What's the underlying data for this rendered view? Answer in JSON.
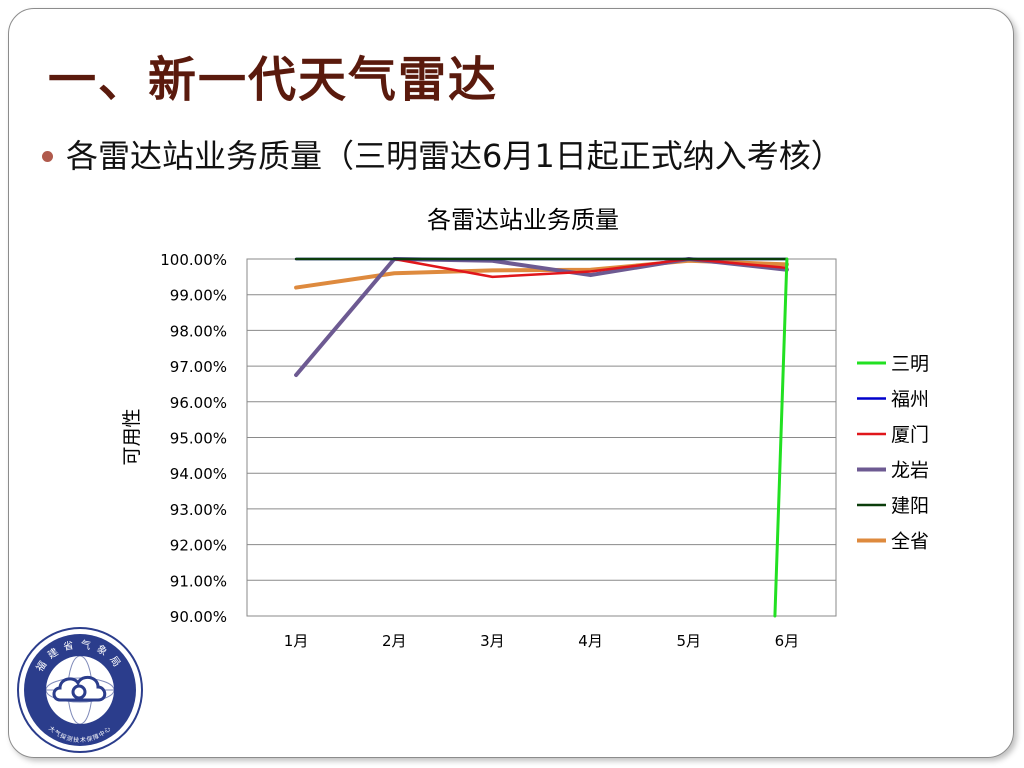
{
  "slide": {
    "title": "一、新一代天气雷达",
    "bullet": "各雷达站业务质量（三明雷达6月1日起正式纳入考核）"
  },
  "logo": {
    "text_top": "福建省气象局",
    "text_bottom": "大气探测技术保障中心"
  },
  "chart_data": {
    "type": "line",
    "title": "各雷达站业务质量",
    "xlabel": "",
    "ylabel": "可用性",
    "categories": [
      "1月",
      "2月",
      "3月",
      "4月",
      "5月",
      "6月"
    ],
    "ylim": [
      90,
      100
    ],
    "yticks": [
      100,
      99,
      98,
      97,
      96,
      95,
      94,
      93,
      92,
      91,
      90
    ],
    "ytick_labels": [
      "100.00%",
      "99.00%",
      "98.00%",
      "97.00%",
      "96.00%",
      "95.00%",
      "94.00%",
      "93.00%",
      "92.00%",
      "91.00%",
      "90.00%"
    ],
    "grid": true,
    "legend_position": "right",
    "series": [
      {
        "name": "三明",
        "color": "#22e022",
        "values": [
          null,
          null,
          null,
          null,
          null,
          100.0
        ],
        "drop_to": 90.0,
        "width": 3
      },
      {
        "name": "福州",
        "color": "#0000cc",
        "values": [
          100.0,
          100.0,
          100.0,
          100.0,
          100.0,
          100.0
        ],
        "width": 2.5
      },
      {
        "name": "厦门",
        "color": "#e0161b",
        "values": [
          null,
          100.0,
          99.5,
          99.65,
          100.0,
          99.75
        ],
        "width": 2.5
      },
      {
        "name": "龙岩",
        "color": "#6d5a92",
        "values": [
          96.75,
          100.0,
          99.95,
          99.55,
          100.0,
          99.7
        ],
        "width": 4
      },
      {
        "name": "建阳",
        "color": "#0b3d0b",
        "values": [
          100.0,
          100.0,
          100.0,
          100.0,
          100.0,
          100.0
        ],
        "width": 2.5
      },
      {
        "name": "全省",
        "color": "#de8a3e",
        "values": [
          99.2,
          99.6,
          99.68,
          99.7,
          99.95,
          99.85
        ],
        "width": 4
      }
    ]
  }
}
